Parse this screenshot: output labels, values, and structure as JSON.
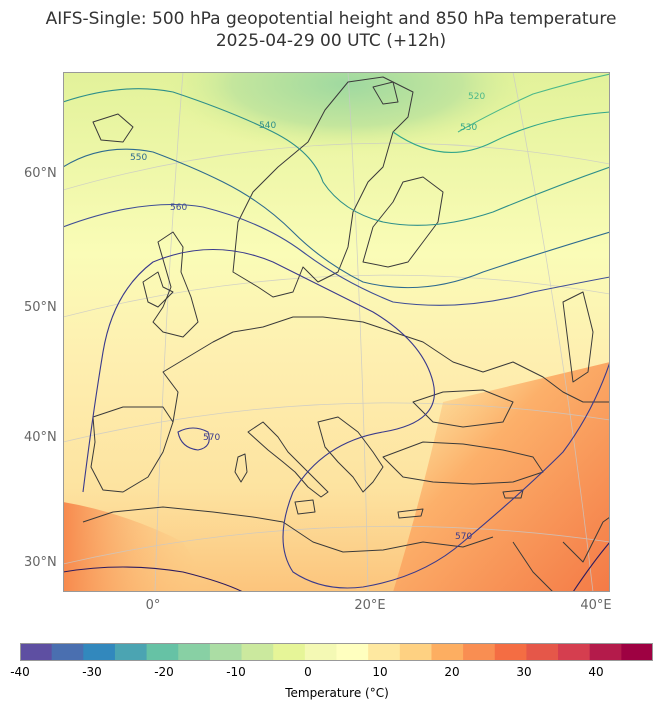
{
  "title": {
    "line1": "AIFS-Single: 500 hPa geopotential height and 850 hPa temperature",
    "line2": "2025-04-29 00 UTC (+12h)"
  },
  "axes": {
    "lat_labels": [
      "60°N",
      "50°N",
      "40°N",
      "30°N"
    ],
    "lon_labels": [
      "0°",
      "20°E",
      "40°E"
    ]
  },
  "contours": {
    "labels": [
      "520",
      "530",
      "540",
      "550",
      "560",
      "570",
      "570",
      "570"
    ]
  },
  "colorbar": {
    "label": "Temperature (°C)",
    "ticks": [
      "-40",
      "-30",
      "-20",
      "-10",
      "0",
      "10",
      "20",
      "30",
      "40"
    ],
    "colors": [
      "#5e4fa2",
      "#4a6fb0",
      "#3288bd",
      "#4ba4b2",
      "#66c2a5",
      "#88d0a4",
      "#abdda4",
      "#cbe99e",
      "#e6f598",
      "#f4f9b4",
      "#ffffbf",
      "#fee8a0",
      "#fed182",
      "#fdae61",
      "#f98e52",
      "#f46d43",
      "#e55749",
      "#d53e4f",
      "#b41b4b",
      "#9e0142"
    ],
    "colors_label": "Spectral colormap, blue (cold) to red (warm)"
  }
}
